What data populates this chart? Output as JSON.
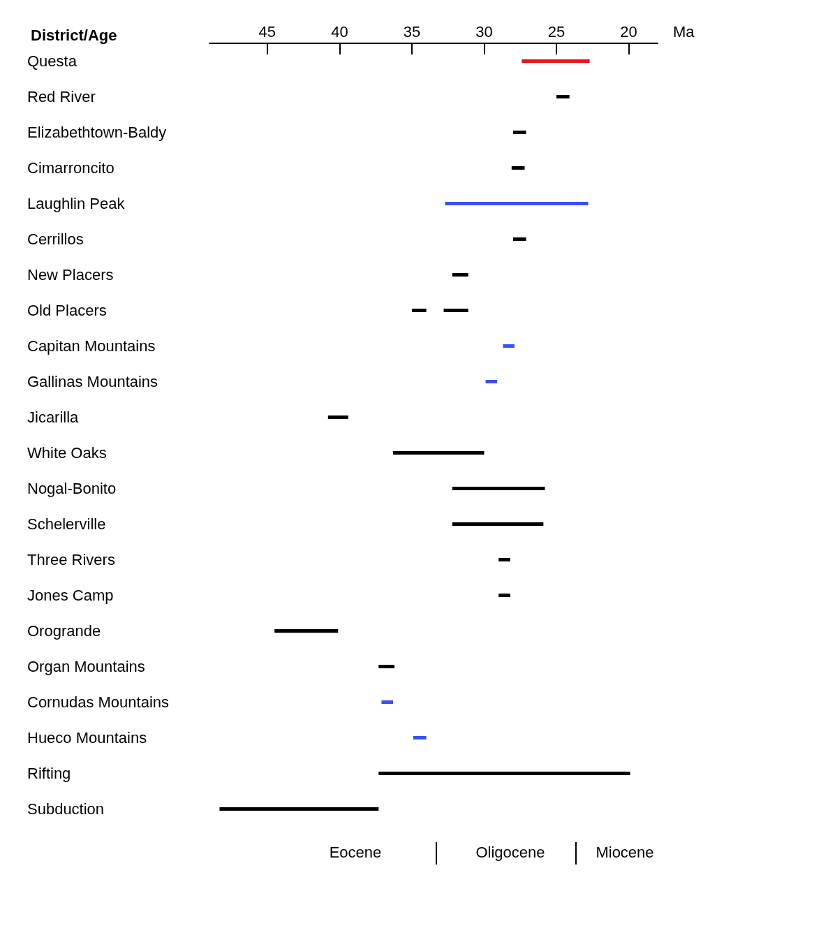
{
  "chart_data": {
    "type": "bar",
    "orientation": "horizontal",
    "title": "District/Age",
    "xlabel": "Ma",
    "categories": [
      "Questa",
      "Red River",
      "Elizabethtown-Baldy",
      "Cimarroncito",
      "Laughlin Peak",
      "Cerrillos",
      "New Placers",
      "Old Placers",
      "Capitan Mountains",
      "Gallinas Mountains",
      "Jicarilla",
      "White Oaks",
      "Nogal-Bonito",
      "Schelerville",
      "Three Rivers",
      "Jones Camp",
      "Orogrande",
      "Organ Mountains",
      "Cornudas Mountains",
      "Hueco Mountains",
      "Rifting",
      "Subduction"
    ],
    "series": [
      {
        "base": [
          22.7,
          24.1,
          27.1,
          27.2,
          22.8,
          27.1,
          31.1,
          34.0,
          27.9,
          29.1,
          39.4,
          30.0,
          25.8,
          25.9,
          28.2,
          28.2,
          40.1,
          36.2,
          36.3,
          34.0,
          19.9,
          37.3
        ],
        "values": [
          4.7,
          0.9,
          0.9,
          0.9,
          9.9,
          0.9,
          1.1,
          1.0,
          0.8,
          0.8,
          1.4,
          6.3,
          6.4,
          6.3,
          0.8,
          0.8,
          4.4,
          1.1,
          0.8,
          0.9,
          17.4,
          11.0
        ],
        "colors": [
          "#e8141c",
          "#000000",
          "#000000",
          "#000000",
          "#3a50f0",
          "#000000",
          "#000000",
          "#000000",
          "#3a50f0",
          "#3a50f0",
          "#000000",
          "#000000",
          "#000000",
          "#000000",
          "#000000",
          "#000000",
          "#000000",
          "#000000",
          "#3a50f0",
          "#3a50f0",
          "#000000",
          "#000000"
        ]
      },
      {
        "base": [
          null,
          null,
          null,
          null,
          null,
          null,
          null,
          31.1,
          null,
          null,
          null,
          null,
          null,
          null,
          null,
          null,
          null,
          null,
          null,
          null,
          null,
          null
        ],
        "values": [
          null,
          null,
          null,
          null,
          null,
          null,
          null,
          1.7,
          null,
          null,
          null,
          null,
          null,
          null,
          null,
          null,
          null,
          null,
          null,
          null,
          null,
          null
        ],
        "colors": [
          null,
          null,
          null,
          null,
          null,
          null,
          null,
          "#000000",
          null,
          null,
          null,
          null,
          null,
          null,
          null,
          null,
          null,
          null,
          null,
          null,
          null,
          null
        ]
      }
    ],
    "xlim": [
      49,
      18
    ],
    "xticks": [
      45,
      40,
      35,
      30,
      25,
      20
    ],
    "annotations": [
      "Eocene",
      "Oligocene",
      "Miocene"
    ],
    "grid": false
  }
}
